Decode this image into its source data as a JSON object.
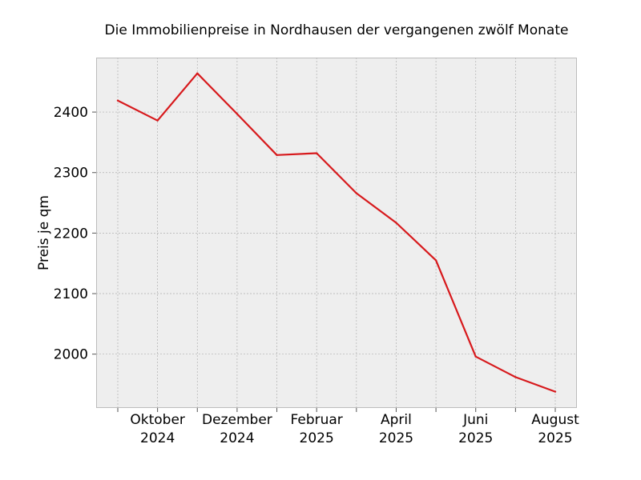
{
  "chart_data": {
    "type": "line",
    "title": "Die Immobilienpreise in Nordhausen der vergangenen zwölf Monate",
    "xlabel": "",
    "ylabel": "Preis je qm",
    "x": [
      "2024-09",
      "2024-10",
      "2024-11",
      "2024-12",
      "2025-01",
      "2025-02",
      "2025-03",
      "2025-04",
      "2025-05",
      "2025-06",
      "2025-07",
      "2025-08"
    ],
    "series": [
      {
        "values": [
          2419,
          2386,
          2464,
          2397,
          2329,
          2332,
          2266,
          2217,
          2155,
          1996,
          1962,
          1938
        ],
        "color": "#d7191c"
      }
    ],
    "ylim": [
      1911,
      2490
    ],
    "y_ticks": [
      2000,
      2100,
      2200,
      2300,
      2400
    ],
    "x_tick_labels": [
      {
        "month": "Oktober",
        "year": "2024"
      },
      {
        "month": "Dezember",
        "year": "2024"
      },
      {
        "month": "Februar",
        "year": "2025"
      },
      {
        "month": "April",
        "year": "2025"
      },
      {
        "month": "Juni",
        "year": "2025"
      },
      {
        "month": "August",
        "year": "2025"
      }
    ],
    "grid": true,
    "background": "#eeeeee",
    "grid_color": "#b0b0b0"
  }
}
